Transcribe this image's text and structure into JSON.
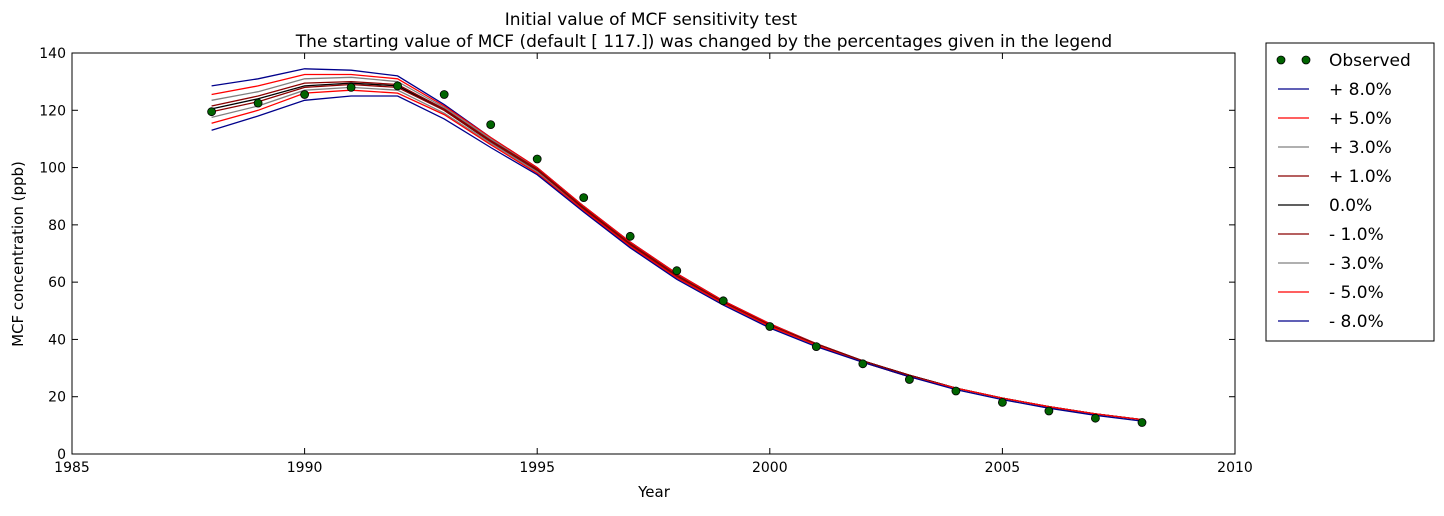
{
  "chart_data": {
    "type": "line",
    "title": "Initial value of MCF sensitivity test",
    "subtitle": "The starting value of MCF (default [ 117.]) was changed by the percentages given in the legend",
    "xlabel": "Year",
    "ylabel": "MCF concentration (ppb)",
    "xlim": [
      1985,
      2010
    ],
    "ylim": [
      0,
      140
    ],
    "xticks": [
      "1985",
      "1990",
      "1995",
      "2000",
      "2005",
      "2010"
    ],
    "yticks": [
      "0",
      "20",
      "40",
      "60",
      "80",
      "100",
      "120",
      "140"
    ],
    "grid": false,
    "legend_position": "outside-right",
    "x": [
      1988,
      1989,
      1990,
      1991,
      1992,
      1993,
      1994,
      1995,
      1996,
      1997,
      1998,
      1999,
      2000,
      2001,
      2002,
      2003,
      2004,
      2005,
      2006,
      2007,
      2008
    ],
    "observed": {
      "name": "Observed",
      "color": "#006400",
      "x": [
        1988,
        1989,
        1990,
        1991,
        1992,
        1993,
        1994,
        1995,
        1996,
        1997,
        1998,
        1999,
        2000,
        2001,
        2002,
        2003,
        2004,
        2005,
        2006,
        2007,
        2008
      ],
      "y": [
        119.5,
        122.5,
        125.5,
        128,
        128.5,
        125.5,
        115,
        103,
        89.5,
        76,
        64,
        53.5,
        44.5,
        37.5,
        31.5,
        26,
        22,
        18,
        15,
        12.5,
        11
      ]
    },
    "series": [
      {
        "name": "+ 8.0%",
        "color": "#00008b",
        "y": [
          128.5,
          131,
          134.5,
          134,
          132,
          122,
          110.5,
          100,
          86.5,
          74,
          63,
          53.5,
          45.5,
          38.5,
          32.5,
          27.5,
          23,
          19.5,
          16.5,
          14,
          12
        ]
      },
      {
        "name": "+ 5.0%",
        "color": "#ff0000",
        "y": [
          125.5,
          128.5,
          132.5,
          132.5,
          131,
          121.5,
          110.5,
          100,
          86.5,
          74,
          63,
          53.5,
          45.5,
          38.5,
          32.5,
          27.5,
          23,
          19.5,
          16.5,
          14,
          12
        ]
      },
      {
        "name": "+ 3.0%",
        "color": "#808080",
        "y": [
          123.5,
          126.5,
          131,
          131.5,
          130,
          121,
          110,
          99.5,
          86,
          73.5,
          62.5,
          53,
          45,
          38.5,
          32.5,
          27.5,
          23,
          19.5,
          16.5,
          14,
          12
        ]
      },
      {
        "name": "+ 1.0%",
        "color": "#8b0000",
        "y": [
          121.5,
          125,
          129.5,
          130,
          129,
          120.5,
          109.5,
          99.5,
          86,
          73.5,
          62.5,
          53,
          45,
          38.5,
          32.5,
          27.5,
          23,
          19.5,
          16.5,
          14,
          12
        ]
      },
      {
        "name": "0.0%",
        "color": "#000000",
        "y": [
          120.5,
          124,
          128.5,
          129.5,
          128.5,
          120,
          109,
          99,
          85.5,
          73,
          62,
          53,
          45,
          38,
          32.5,
          27.5,
          23,
          19.5,
          16.5,
          14,
          12
        ]
      },
      {
        "name": "- 1.0%",
        "color": "#8b0000",
        "y": [
          119.5,
          123,
          128,
          129,
          128,
          120,
          109,
          99,
          85.5,
          73,
          62,
          53,
          45,
          38,
          32.5,
          27.5,
          23,
          19.5,
          16.5,
          14,
          12
        ]
      },
      {
        "name": "- 3.0%",
        "color": "#808080",
        "y": [
          117.5,
          121.5,
          127,
          128,
          127,
          119,
          108.5,
          98.5,
          85,
          72.5,
          61.5,
          52.5,
          44.5,
          38,
          32,
          27,
          23,
          19.5,
          16.5,
          14,
          12
        ]
      },
      {
        "name": "- 5.0%",
        "color": "#ff0000",
        "y": [
          115.5,
          120,
          126,
          127,
          126,
          118.5,
          108,
          98,
          85,
          72.5,
          61.5,
          52.5,
          44.5,
          38,
          32,
          27,
          23,
          19.5,
          16.5,
          14,
          12
        ]
      },
      {
        "name": "- 8.0%",
        "color": "#00008b",
        "y": [
          113,
          118,
          123.5,
          125,
          125,
          117,
          107,
          97.5,
          84.5,
          72,
          61,
          52,
          44,
          37.5,
          32,
          27,
          22.5,
          19,
          16,
          13.5,
          11.5
        ]
      }
    ]
  }
}
